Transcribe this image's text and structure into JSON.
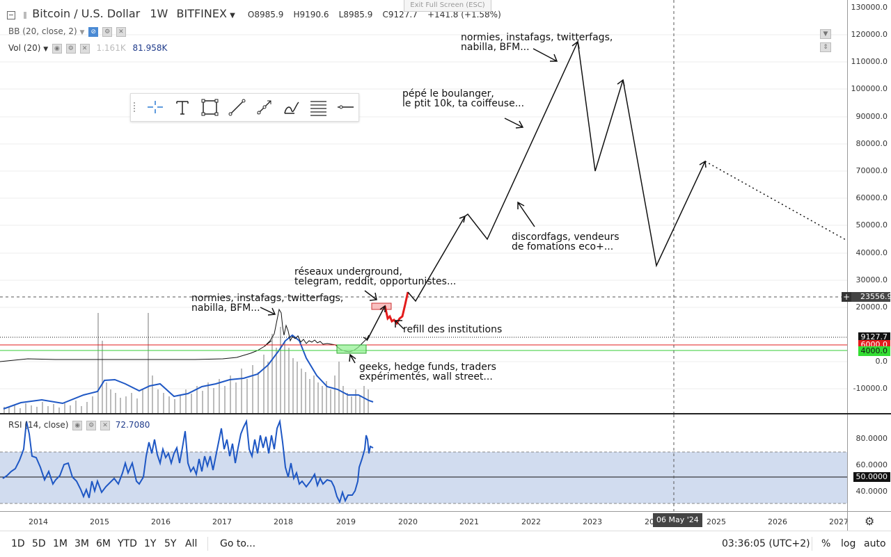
{
  "header": {
    "title": "Bitcoin / U.S. Dollar",
    "interval": "1W",
    "exchange": "BITFINEX",
    "ohlc": {
      "o": "O8985.9",
      "h": "H9190.6",
      "l": "L8985.9",
      "c": "C9127.7",
      "chg": "+141.8 (+1.58%)"
    },
    "exit_fullscreen": "Exit Full Screen (ESC)"
  },
  "indicators": {
    "bb": "BB (20, close, 2)",
    "vol": "Vol (20)",
    "vol_a": "1.161K",
    "vol_b": "81.958K",
    "rsi": "RSI (14, close)",
    "rsi_val": "72.7080"
  },
  "price_axis": {
    "labels": [
      "130000.0",
      "120000.0",
      "110000.0",
      "100000.0",
      "90000.0",
      "80000.0",
      "70000.0",
      "60000.0",
      "50000.0",
      "40000.0",
      "30000.0",
      "20000.0",
      "0.0",
      "-10000.0"
    ],
    "crosshair_price": "23556.9",
    "last_price": "9127.7",
    "red_level": "6000.0",
    "green_level": "4000.0"
  },
  "rsi_axis": {
    "labels": [
      "80.0000",
      "60.0000",
      "50.0000",
      "40.0000"
    ],
    "upper_band": 70,
    "lower_band": 30
  },
  "time_axis": {
    "labels": [
      "2014",
      "2015",
      "2016",
      "2017",
      "2018",
      "2019",
      "2020",
      "2021",
      "2022",
      "2023",
      "2024",
      "2025",
      "2026",
      "2027"
    ],
    "crosshair_date": "06 May '24"
  },
  "annotations": {
    "top_right": [
      "normies, instafags, twitterfags,",
      "nabilla, BFM..."
    ],
    "boulanger": [
      "pépé le boulanger,",
      "le ptit 10k, ta coiffeuse..."
    ],
    "discord": [
      "discordfags, vendeurs",
      "de fomations eco+..."
    ],
    "reseaux": [
      "réseaux underground,",
      "telegram, reddit, opportunistes..."
    ],
    "normies_2017": [
      "normies, instafags, twitterfags,",
      "nabilla, BFM..."
    ],
    "refill": "refill des institutions",
    "geeks": [
      "geeks, hedge funds, traders",
      "expérimentés, wall street..."
    ]
  },
  "toolbar": {
    "tools": [
      "crosshair-icon",
      "text-tool-icon",
      "rectangle-tool-icon",
      "trendline-tool-icon",
      "ray-tool-icon",
      "brush-tool-icon",
      "horizontal-lines-icon",
      "horizontal-line-icon"
    ]
  },
  "bottom_bar": {
    "ranges": [
      "1D",
      "5D",
      "1M",
      "3M",
      "6M",
      "YTD",
      "1Y",
      "5Y",
      "All"
    ],
    "goto": "Go to...",
    "time": "03:36:05 (UTC+2)",
    "percent": "%",
    "log": "log",
    "auto": "auto"
  },
  "colors": {
    "series": "#1b1b1b",
    "indicator_blue": "#1e57c4",
    "red_line": "#e31b1b",
    "green_line": "#33cc33",
    "rsi_band": "#c9d6ec",
    "projection_red": "#e31b1b"
  }
}
